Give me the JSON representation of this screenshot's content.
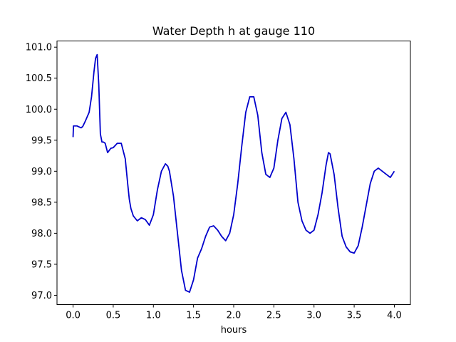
{
  "chart_data": {
    "type": "line",
    "title": "Water Depth h at gauge 110",
    "xlabel": "hours",
    "ylabel": "",
    "xlim": [
      -0.2,
      4.2
    ],
    "ylim": [
      96.85,
      101.1
    ],
    "xticks": [
      "0.0",
      "0.5",
      "1.0",
      "1.5",
      "2.0",
      "2.5",
      "3.0",
      "3.5",
      "4.0"
    ],
    "yticks": [
      "97.0",
      "97.5",
      "98.0",
      "98.5",
      "99.0",
      "99.5",
      "100.0",
      "100.5",
      "101.0"
    ],
    "grid": false,
    "series": [
      {
        "color": "#0000cc",
        "x": [
          0.0,
          0.005,
          0.05,
          0.1,
          0.12,
          0.15,
          0.2,
          0.23,
          0.26,
          0.28,
          0.3,
          0.32,
          0.34,
          0.36,
          0.38,
          0.4,
          0.43,
          0.47,
          0.5,
          0.55,
          0.6,
          0.65,
          0.68,
          0.7,
          0.72,
          0.75,
          0.8,
          0.85,
          0.9,
          0.95,
          1.0,
          1.05,
          1.1,
          1.15,
          1.18,
          1.2,
          1.25,
          1.3,
          1.35,
          1.4,
          1.45,
          1.5,
          1.55,
          1.6,
          1.65,
          1.7,
          1.75,
          1.8,
          1.85,
          1.9,
          1.95,
          2.0,
          2.05,
          2.1,
          2.15,
          2.2,
          2.25,
          2.3,
          2.35,
          2.4,
          2.45,
          2.5,
          2.55,
          2.6,
          2.65,
          2.7,
          2.75,
          2.8,
          2.85,
          2.9,
          2.95,
          3.0,
          3.05,
          3.1,
          3.15,
          3.18,
          3.2,
          3.25,
          3.3,
          3.35,
          3.4,
          3.45,
          3.5,
          3.55,
          3.6,
          3.65,
          3.7,
          3.75,
          3.8,
          3.85,
          3.9,
          3.95,
          4.0
        ],
        "y": [
          99.55,
          99.73,
          99.73,
          99.7,
          99.72,
          99.8,
          99.95,
          100.2,
          100.6,
          100.82,
          100.88,
          100.4,
          99.6,
          99.47,
          99.47,
          99.45,
          99.3,
          99.37,
          99.38,
          99.45,
          99.45,
          99.2,
          98.8,
          98.55,
          98.4,
          98.28,
          98.2,
          98.25,
          98.22,
          98.13,
          98.3,
          98.7,
          99.0,
          99.12,
          99.08,
          99.0,
          98.6,
          98.0,
          97.4,
          97.08,
          97.05,
          97.25,
          97.6,
          97.75,
          97.95,
          98.1,
          98.12,
          98.05,
          97.95,
          97.88,
          98.0,
          98.3,
          98.8,
          99.4,
          99.95,
          100.2,
          100.2,
          99.9,
          99.3,
          98.95,
          98.9,
          99.05,
          99.5,
          99.85,
          99.95,
          99.75,
          99.2,
          98.5,
          98.2,
          98.05,
          98.0,
          98.05,
          98.3,
          98.65,
          99.1,
          99.3,
          99.28,
          98.95,
          98.4,
          97.95,
          97.78,
          97.7,
          97.68,
          97.8,
          98.1,
          98.45,
          98.8,
          99.0,
          99.05,
          99.0,
          98.95,
          98.9,
          99.0
        ]
      }
    ]
  }
}
